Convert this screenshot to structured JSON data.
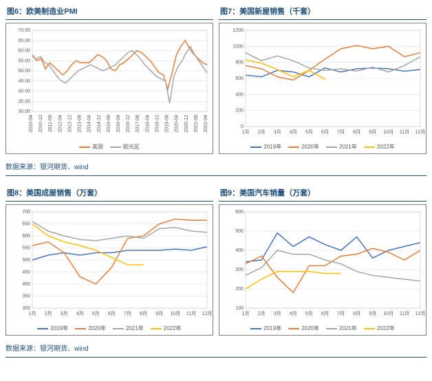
{
  "colors": {
    "s2019": "#4472c4",
    "s2020": "#ed7d31",
    "s2021": "#a5a5a5",
    "s2022": "#ffc000",
    "us": "#ed7d31",
    "eu": "#a5a5a5",
    "title": "#1f4e79",
    "grid": "#d9d9d9",
    "text": "#595959",
    "border": "#7f7f7f"
  },
  "chart6": {
    "title": "图6：欧美制造业PMI",
    "type": "line",
    "ylim": [
      30,
      70
    ],
    "ytick_step": 5,
    "xlabels": [
      "2010-04",
      "2010-12",
      "2011-08",
      "2012-04",
      "2012-12",
      "2013-08",
      "2014-04",
      "2014-12",
      "2015-08",
      "2016-04",
      "2016-12",
      "2017-08",
      "2018-04",
      "2018-12",
      "2019-08",
      "2020-04",
      "2020-12",
      "2021-08",
      "2022-04"
    ],
    "series": [
      {
        "name": "美国",
        "color": "#ed7d31",
        "values": [
          58,
          55,
          56,
          51,
          54,
          52,
          50,
          48,
          50,
          53,
          55,
          54,
          54,
          54,
          56,
          58,
          57,
          55,
          51,
          50,
          53,
          54,
          56,
          58,
          60,
          59,
          57,
          55,
          52,
          49,
          48,
          41,
          49,
          58,
          62,
          65,
          61,
          58,
          56,
          54,
          53
        ]
      },
      {
        "name": "欧元区",
        "color": "#a5a5a5",
        "values": [
          57,
          56,
          57,
          54,
          53,
          50,
          47,
          45,
          44,
          46,
          48,
          50,
          51,
          52,
          53,
          52,
          51,
          50,
          51,
          52,
          53,
          55,
          57,
          59,
          60,
          58,
          56,
          53,
          51,
          49,
          47,
          46,
          45,
          34,
          47,
          52,
          55,
          59,
          62,
          58,
          55,
          52,
          49
        ]
      }
    ]
  },
  "chart7": {
    "title": "图7：美国新屋销售（千套）",
    "type": "line",
    "ylim": [
      0,
      1200
    ],
    "ytick_step": 200,
    "xlabels": [
      "1月",
      "2月",
      "3月",
      "4月",
      "5月",
      "6月",
      "7月",
      "8月",
      "9月",
      "10月",
      "11月",
      "12月"
    ],
    "series": [
      {
        "name": "2019年",
        "color": "#4472c4",
        "values": [
          640,
          620,
          700,
          680,
          620,
          730,
          680,
          720,
          730,
          720,
          690,
          710
        ]
      },
      {
        "name": "2020年",
        "color": "#ed7d31",
        "values": [
          760,
          720,
          620,
          580,
          700,
          840,
          970,
          1010,
          970,
          1000,
          870,
          920
        ]
      },
      {
        "name": "2021年",
        "color": "#a5a5a5",
        "values": [
          920,
          820,
          880,
          820,
          730,
          700,
          720,
          690,
          740,
          680,
          760,
          870
        ]
      },
      {
        "name": "2022年",
        "color": "#ffc000",
        "values": [
          830,
          790,
          710,
          620,
          700,
          590
        ]
      }
    ]
  },
  "chart8": {
    "title": "图8：美国成屋销售（万套）",
    "type": "line",
    "ylim": [
      300,
      700
    ],
    "ytick_step": 50,
    "xlabels": [
      "1月",
      "2月",
      "3月",
      "4月",
      "5月",
      "6月",
      "7月",
      "8月",
      "9月",
      "10月",
      "11月",
      "12月"
    ],
    "series": [
      {
        "name": "2019年",
        "color": "#4472c4",
        "values": [
          500,
          520,
          530,
          520,
          530,
          530,
          540,
          540,
          540,
          545,
          540,
          555
        ]
      },
      {
        "name": "2020年",
        "color": "#ed7d31",
        "values": [
          560,
          575,
          530,
          430,
          400,
          470,
          590,
          600,
          650,
          670,
          665,
          665
        ]
      },
      {
        "name": "2021年",
        "color": "#a5a5a5",
        "values": [
          660,
          620,
          600,
          585,
          580,
          590,
          600,
          590,
          630,
          635,
          620,
          615
        ]
      },
      {
        "name": "2022年",
        "color": "#ffc000",
        "values": [
          650,
          600,
          575,
          560,
          540,
          510,
          480,
          480
        ]
      }
    ]
  },
  "chart9": {
    "title": "图9：美国汽车销量（万套）",
    "type": "line",
    "ylim": [
      100,
      600
    ],
    "ytick_step": 100,
    "xlabels": [
      "1月",
      "2月",
      "3月",
      "4月",
      "5月",
      "6月",
      "7月",
      "8月",
      "9月",
      "10月",
      "11月",
      "12月"
    ],
    "series": [
      {
        "name": "2019年",
        "color": "#4472c4",
        "values": [
          340,
          350,
          490,
          420,
          470,
          430,
          400,
          470,
          360,
          400,
          420,
          440
        ]
      },
      {
        "name": "2020年",
        "color": "#ed7d31",
        "values": [
          330,
          370,
          260,
          180,
          320,
          320,
          370,
          380,
          410,
          390,
          350,
          400
        ]
      },
      {
        "name": "2021年",
        "color": "#a5a5a5",
        "values": [
          270,
          310,
          400,
          380,
          380,
          350,
          330,
          290,
          270,
          260,
          250,
          240
        ]
      },
      {
        "name": "2022年",
        "color": "#ffc000",
        "values": [
          200,
          250,
          290,
          290,
          290,
          280,
          280
        ]
      }
    ]
  },
  "source": "数据来源：银河期货、wind",
  "legend_years": [
    "2019年",
    "2020年",
    "2021年",
    "2022年"
  ]
}
